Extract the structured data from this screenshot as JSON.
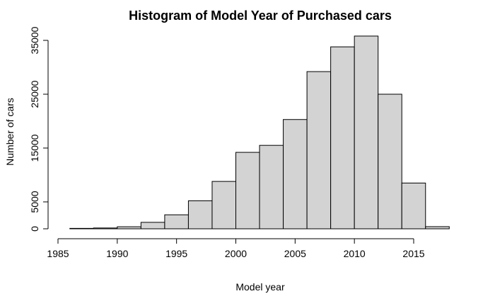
{
  "chart_data": {
    "type": "bar",
    "title": "Histogram of Model Year of Purchased cars",
    "xlabel": "Model year",
    "ylabel": "Number of cars",
    "xlim": [
      1985,
      2018
    ],
    "ylim": [
      0,
      35000
    ],
    "x_ticks": [
      1985,
      1990,
      1995,
      2000,
      2005,
      2010,
      2015
    ],
    "y_ticks": [
      0,
      5000,
      15000,
      25000,
      35000
    ],
    "bins": [
      {
        "start": 1986,
        "end": 1988,
        "value": 80
      },
      {
        "start": 1988,
        "end": 1990,
        "value": 150
      },
      {
        "start": 1990,
        "end": 1992,
        "value": 380
      },
      {
        "start": 1992,
        "end": 1994,
        "value": 1200
      },
      {
        "start": 1994,
        "end": 1996,
        "value": 2600
      },
      {
        "start": 1996,
        "end": 1998,
        "value": 5200
      },
      {
        "start": 1998,
        "end": 2000,
        "value": 8800
      },
      {
        "start": 2000,
        "end": 2002,
        "value": 14200
      },
      {
        "start": 2002,
        "end": 2004,
        "value": 15500
      },
      {
        "start": 2004,
        "end": 2006,
        "value": 20300
      },
      {
        "start": 2006,
        "end": 2008,
        "value": 29200
      },
      {
        "start": 2008,
        "end": 2010,
        "value": 33800
      },
      {
        "start": 2010,
        "end": 2012,
        "value": 35800
      },
      {
        "start": 2012,
        "end": 2014,
        "value": 25000
      },
      {
        "start": 2014,
        "end": 2016,
        "value": 8500
      },
      {
        "start": 2016,
        "end": 2018,
        "value": 400
      }
    ],
    "colors": {
      "bar_fill": "#d3d3d3",
      "bar_stroke": "#000000"
    },
    "grid": false
  }
}
